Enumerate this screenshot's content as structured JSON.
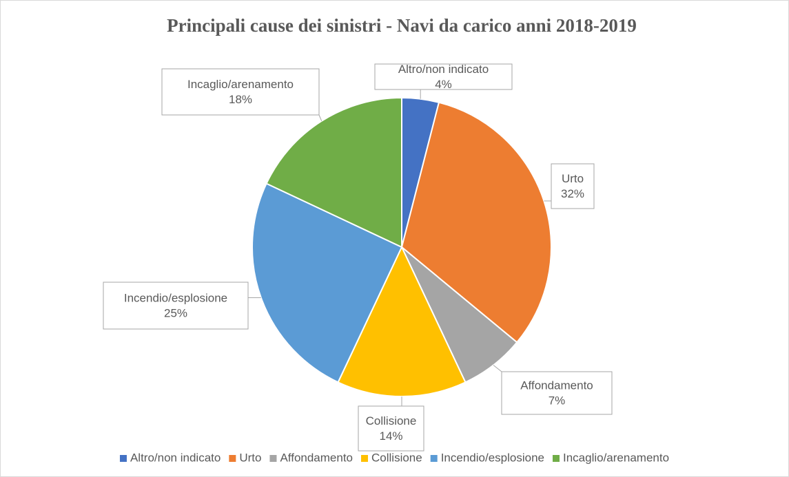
{
  "chart_data": {
    "type": "pie",
    "title": "Principali cause dei sinistri - Navi da carico anni 2018-2019",
    "categories": [
      "Altro/non indicato",
      "Urto",
      "Affondamento",
      "Collisione",
      "Incendio/esplosione",
      "Incaglio/arenamento"
    ],
    "values": [
      4,
      32,
      7,
      14,
      25,
      18
    ],
    "value_labels": [
      "4%",
      "32%",
      "7%",
      "14%",
      "25%",
      "18%"
    ],
    "colors": [
      "#4472c4",
      "#ed7d31",
      "#a5a5a5",
      "#ffc000",
      "#5b9bd5",
      "#70ad47"
    ],
    "legend": "bottom"
  }
}
